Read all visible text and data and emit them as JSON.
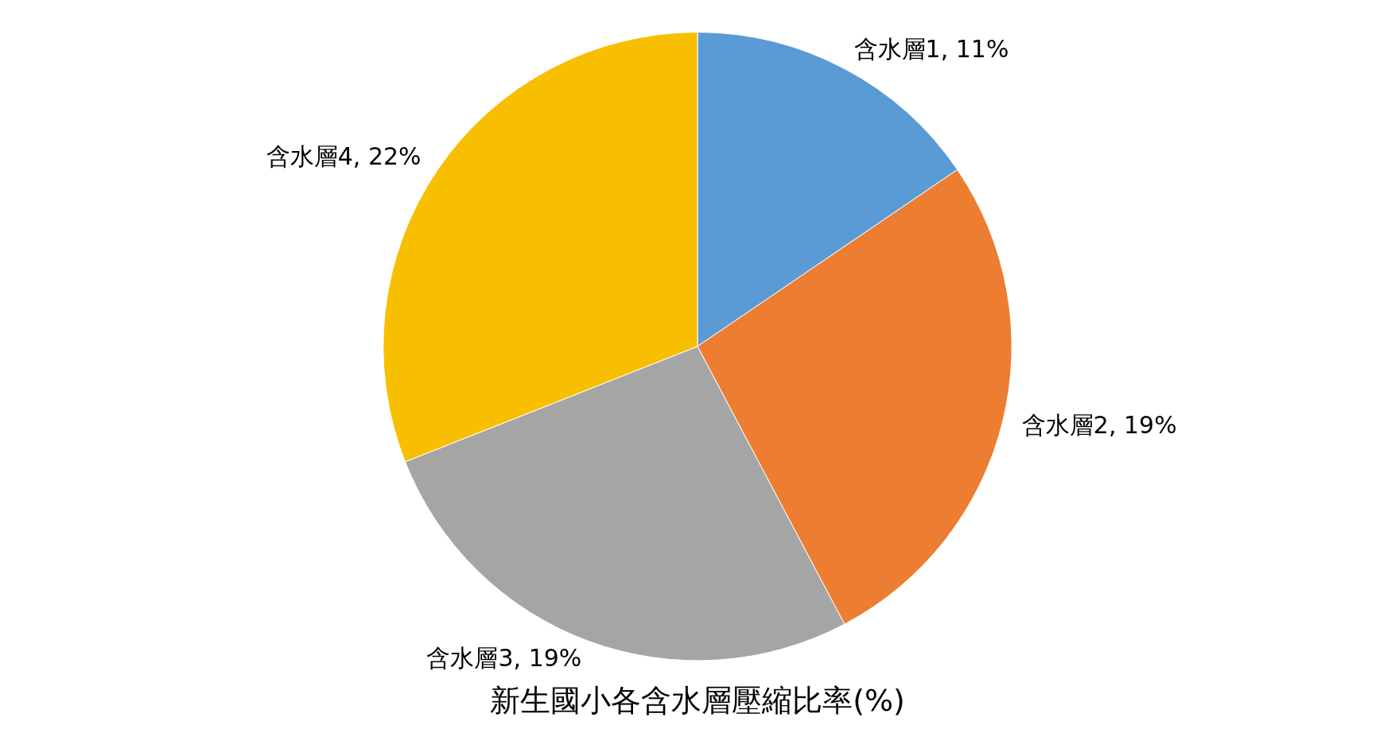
{
  "chart_data": {
    "type": "pie",
    "title": "新生國小各含水層壓縮比率(%)",
    "categories": [
      "含水層1",
      "含水層2",
      "含水層3",
      "含水層4"
    ],
    "values": [
      11,
      19,
      19,
      22
    ],
    "colors": [
      "#5b9bd5",
      "#ed7d31",
      "#a5a5a5",
      "#f8bf00"
    ],
    "value_labels": [
      "11%",
      "19%",
      "19%",
      "22%"
    ],
    "legend": false
  }
}
